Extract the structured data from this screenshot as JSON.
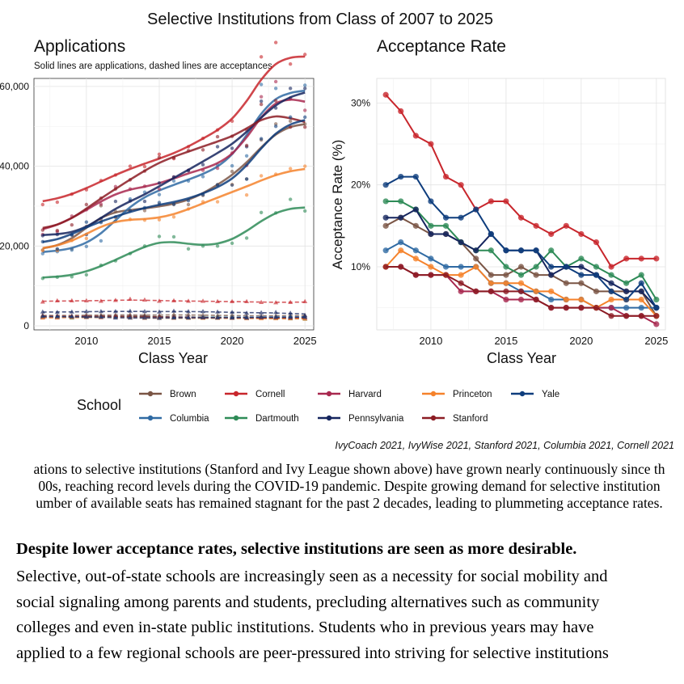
{
  "figure_title": "Selective Institutions from Class of 2007 to 2025",
  "legend_title": "School",
  "source_note": "IvyCoach 2021, IvyWise 2021, Stanford 2021, Columbia 2021, Cornell 2021",
  "colors": {
    "Brown": "#7a5545",
    "Columbia": "#2f6aa3",
    "Cornell": "#c8262c",
    "Dartmouth": "#2e8b57",
    "Harvard": "#a8284f",
    "Pennsylvania": "#15255e",
    "Princeton": "#f5822b",
    "Stanford": "#8c1c24",
    "Yale": "#0e3d7d"
  },
  "legend_items": [
    "Brown",
    "Cornell",
    "Harvard",
    "Princeton",
    "Yale",
    "Columbia",
    "Dartmouth",
    "Pennsylvania",
    "Stanford"
  ],
  "chart_data": [
    {
      "type": "line",
      "title": "Applications",
      "subtitle": "Solid lines are applications, dashed lines are acceptances",
      "xlabel": "Class Year",
      "ylabel": "",
      "xlim": [
        2006.4,
        2025.6
      ],
      "ylim": [
        -1000,
        62000
      ],
      "y_ticks": [
        0,
        20000,
        40000,
        60000
      ],
      "y_tick_labels": [
        "0",
        "20,000",
        "40,000",
        "60,000"
      ],
      "x_ticks": [
        2010,
        2015,
        2020,
        2025
      ],
      "x_tick_labels": [
        "2010",
        "2015",
        "2020",
        "2025"
      ],
      "x": [
        2007,
        2008,
        2009,
        2010,
        2011,
        2012,
        2013,
        2014,
        2015,
        2016,
        2017,
        2018,
        2019,
        2020,
        2021,
        2022,
        2023,
        2024,
        2025
      ],
      "applications": [
        {
          "name": "Brown",
          "values": [
            19000,
            19100,
            19300,
            24900,
            30100,
            28700,
            28900,
            28900,
            30400,
            30400,
            30400,
            32700,
            35400,
            38700,
            36800,
            46600,
            50600,
            51300,
            50600
          ]
        },
        {
          "name": "Columbia",
          "values": [
            18100,
            18600,
            19000,
            19900,
            21300,
            26200,
            31800,
            33500,
            32900,
            36300,
            36300,
            37400,
            40300,
            40100,
            42600,
            60500,
            59500,
            57100,
            60300
          ]
        },
        {
          "name": "Cornell",
          "values": [
            30400,
            31000,
            33000,
            34100,
            36400,
            37800,
            40000,
            39900,
            43000,
            41900,
            44900,
            47000,
            49100,
            51300,
            49100,
            67400,
            71000,
            65600,
            68000
          ]
        },
        {
          "name": "Dartmouth",
          "values": [
            11900,
            12200,
            12300,
            12800,
            15200,
            16300,
            18100,
            20000,
            22400,
            22300,
            19300,
            20000,
            20000,
            20700,
            22000,
            28400,
            28300,
            31700,
            28800
          ]
        },
        {
          "name": "Harvard",
          "values": [
            22900,
            23600,
            27500,
            29100,
            30500,
            34900,
            34300,
            35000,
            34300,
            37300,
            39000,
            39000,
            39500,
            43300,
            40200,
            57400,
            61200,
            56900,
            54000
          ]
        },
        {
          "name": "Pennsylvania",
          "values": [
            22600,
            22900,
            22800,
            22900,
            26900,
            31200,
            31300,
            31200,
            35800,
            37300,
            38900,
            40400,
            44900,
            44500,
            44900,
            56300,
            54600,
            59500,
            59500
          ]
        },
        {
          "name": "Princeton",
          "values": [
            18900,
            18900,
            21400,
            21900,
            26200,
            27200,
            26700,
            26500,
            26600,
            27300,
            29300,
            31100,
            31100,
            35400,
            32800,
            37600,
            38000,
            39400,
            40000
          ]
        },
        {
          "name": "Stanford",
          "values": [
            24000,
            23900,
            25300,
            30400,
            32000,
            34300,
            36600,
            38800,
            42200,
            42100,
            43900,
            44100,
            47400,
            47500,
            45200,
            55500,
            56400,
            49800,
            49800
          ]
        },
        {
          "name": "Yale",
          "values": [
            21100,
            19300,
            22800,
            26000,
            25900,
            27300,
            28900,
            29600,
            30900,
            30500,
            31400,
            32900,
            35300,
            35300,
            36800,
            46900,
            50000,
            52300,
            52300
          ]
        }
      ],
      "acceptances": [
        {
          "name": "Brown",
          "values": [
            2700,
            2500,
            2500,
            2800,
            2700,
            2700,
            2800,
            2700,
            2600,
            2800,
            2800,
            2700,
            2600,
            2600,
            2500,
            2500,
            2550,
            2550,
            2600
          ]
        },
        {
          "name": "Columbia",
          "values": [
            2200,
            2100,
            2300,
            2300,
            2400,
            2400,
            2400,
            2400,
            2300,
            2200,
            2200,
            2200,
            2200,
            2200,
            2200,
            2200,
            2200,
            2300,
            2200
          ]
        },
        {
          "name": "Cornell",
          "values": [
            6000,
            6300,
            6300,
            6300,
            6200,
            6400,
            6700,
            6500,
            6200,
            6300,
            6200,
            6200,
            6100,
            6100,
            6100,
            5900,
            5800,
            5900,
            6100
          ]
        },
        {
          "name": "Dartmouth",
          "values": [
            2200,
            2200,
            2000,
            2300,
            2400,
            2300,
            2400,
            2400,
            2200,
            2100,
            2100,
            2100,
            2200,
            2100,
            2000,
            2000,
            1900,
            1800,
            1700
          ]
        },
        {
          "name": "Harvard",
          "values": [
            2100,
            2100,
            2200,
            2200,
            2100,
            2100,
            2100,
            2000,
            2000,
            2000,
            2100,
            2000,
            2000,
            2000,
            2000,
            2000,
            2000,
            2000,
            1900
          ]
        },
        {
          "name": "Pennsylvania",
          "values": [
            3500,
            3400,
            3500,
            3600,
            3600,
            3600,
            3700,
            3600,
            3500,
            3700,
            3600,
            3600,
            3500,
            3400,
            3200,
            3300,
            3400,
            3200,
            2600
          ]
        },
        {
          "name": "Princeton",
          "values": [
            2000,
            2000,
            2100,
            2100,
            2100,
            2200,
            2000,
            1900,
            1900,
            1900,
            1900,
            1900,
            1900,
            1900,
            1800,
            1800,
            1800,
            1800,
            1700
          ]
        },
        {
          "name": "Stanford",
          "values": [
            2500,
            2400,
            2400,
            2400,
            2400,
            2400,
            2400,
            2400,
            2300,
            2200,
            2100,
            2100,
            2100,
            2000,
            2000,
            2100,
            2100,
            2000,
            2200
          ]
        },
        {
          "name": "Yale",
          "values": [
            2400,
            2300,
            2300,
            2200,
            2200,
            2000,
            2000,
            2000,
            1900,
            2000,
            2000,
            2100,
            2000,
            2000,
            2000,
            2200,
            2200,
            2200,
            2200
          ]
        }
      ],
      "grid": true
    },
    {
      "type": "line",
      "title": "Acceptance Rate",
      "xlabel": "Class Year",
      "ylabel": "Acceptance Rate (%)",
      "xlim": [
        2006.4,
        2025.6
      ],
      "ylim": [
        2.3,
        33.0
      ],
      "y_ticks": [
        10,
        20,
        30
      ],
      "y_tick_labels": [
        "10%",
        "20%",
        "30%"
      ],
      "x_ticks": [
        2010,
        2015,
        2020,
        2025
      ],
      "x_tick_labels": [
        "2010",
        "2015",
        "2020",
        "2025"
      ],
      "x": [
        2007,
        2008,
        2009,
        2010,
        2011,
        2012,
        2013,
        2014,
        2015,
        2016,
        2017,
        2018,
        2019,
        2020,
        2021,
        2022,
        2023,
        2024,
        2025
      ],
      "series": [
        {
          "name": "Brown",
          "values": [
            15,
            16,
            15,
            14,
            14,
            13,
            11,
            9,
            9,
            10,
            9,
            9,
            8,
            8,
            7,
            7,
            7,
            7,
            4
          ]
        },
        {
          "name": "Columbia",
          "values": [
            12,
            13,
            12,
            11,
            10,
            10,
            10,
            8,
            8,
            7,
            7,
            6,
            6,
            6,
            5,
            5,
            5,
            5,
            5
          ]
        },
        {
          "name": "Cornell",
          "values": [
            31,
            29,
            26,
            25,
            21,
            20,
            17,
            18,
            18,
            16,
            15,
            14,
            15,
            14,
            13,
            10,
            11,
            11,
            11
          ]
        },
        {
          "name": "Dartmouth",
          "values": [
            18,
            18,
            17,
            15,
            15,
            13,
            12,
            12,
            10,
            9,
            10,
            12,
            10,
            11,
            10,
            9,
            8,
            9,
            6
          ]
        },
        {
          "name": "Harvard",
          "values": [
            10,
            10,
            9,
            9,
            9,
            7,
            7,
            7,
            6,
            6,
            6,
            5,
            5,
            5,
            5,
            5,
            4,
            4,
            3
          ]
        },
        {
          "name": "Pennsylvania",
          "values": [
            16,
            16,
            17,
            14,
            14,
            13,
            12,
            14,
            12,
            12,
            12,
            9,
            10,
            10,
            9,
            8,
            7,
            7,
            5
          ]
        },
        {
          "name": "Princeton",
          "values": [
            10,
            12,
            11,
            10,
            9,
            9,
            10,
            8,
            8,
            8,
            7,
            7,
            6,
            6,
            5,
            6,
            6,
            6,
            4
          ]
        },
        {
          "name": "Stanford",
          "values": [
            10,
            10,
            9,
            9,
            9,
            8,
            7,
            7,
            7,
            7,
            6,
            5,
            5,
            5,
            5,
            4,
            4,
            4,
            4
          ]
        },
        {
          "name": "Yale",
          "values": [
            20,
            21,
            21,
            18,
            16,
            16,
            17,
            14,
            12,
            12,
            12,
            10,
            10,
            9,
            9,
            7,
            6,
            8,
            5
          ]
        }
      ],
      "grid": true
    }
  ],
  "caption_lines": [
    "ations to selective institutions (Stanford and Ivy League shown above) have grown nearly continuously since th",
    "00s, reaching record levels during the COVID-19 pandemic. Despite growing demand for selective institution",
    "umber of available seats has remained stagnant for the past 2 decades, leading to plummeting acceptance rates."
  ],
  "section": {
    "heading": "Despite lower acceptance rates, selective institutions are seen as more desirable.",
    "lines": [
      "Selective, out-of-state schools are increasingly seen as a necessity for social mobility and",
      "social signaling among parents and students, precluding alternatives such as community",
      "colleges and even in-state public institutions. Students who in previous years may have",
      "applied to a few regional schools are peer-pressured into striving for selective institutions"
    ]
  }
}
